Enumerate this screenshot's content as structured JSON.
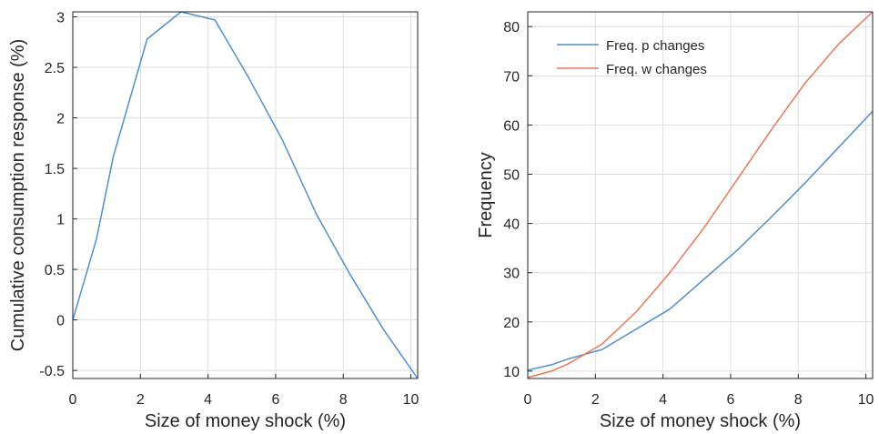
{
  "chart_data": [
    {
      "type": "line",
      "xlabel": "Size of money shock (%)",
      "ylabel": "Cumulative consumption response (%)",
      "xlim": [
        0,
        10.2
      ],
      "ylim": [
        -0.58,
        3.05
      ],
      "xticks": [
        0,
        2,
        4,
        6,
        8,
        10
      ],
      "xtick_labels": [
        "0",
        "2",
        "4",
        "6",
        "8",
        "10"
      ],
      "yticks": [
        -0.5,
        0,
        0.5,
        1,
        1.5,
        2,
        2.5,
        3
      ],
      "ytick_labels": [
        "-0.5",
        "0",
        "0.5",
        "1",
        "1.5",
        "2",
        "2.5",
        "3"
      ],
      "grid": true,
      "legend": null,
      "series": [
        {
          "color": "#4f8fcf",
          "x": [
            0,
            0.7,
            1.2,
            2.2,
            3.2,
            4.2,
            5.2,
            6.2,
            7.2,
            8.2,
            9.2,
            10.2
          ],
          "y": [
            0,
            0.8,
            1.62,
            2.78,
            3.05,
            2.97,
            2.4,
            1.78,
            1.05,
            0.45,
            -0.1,
            -0.58
          ]
        }
      ]
    },
    {
      "type": "line",
      "xlabel": "Size of money shock (%)",
      "ylabel": "Frequency",
      "xlim": [
        0,
        10.2
      ],
      "ylim": [
        8.5,
        83
      ],
      "xticks": [
        0,
        2,
        4,
        6,
        8,
        10
      ],
      "xtick_labels": [
        "0",
        "2",
        "4",
        "6",
        "8",
        "10"
      ],
      "yticks": [
        10,
        20,
        30,
        40,
        50,
        60,
        70,
        80
      ],
      "ytick_labels": [
        "10",
        "20",
        "30",
        "40",
        "50",
        "60",
        "70",
        "80"
      ],
      "grid": true,
      "legend": "top-left",
      "series": [
        {
          "name": "Freq. p changes",
          "color": "#4f8fcf",
          "x": [
            0,
            0.7,
            1.2,
            2.2,
            3.2,
            4.2,
            5.2,
            6.2,
            7.2,
            8.2,
            9.2,
            10.2
          ],
          "y": [
            10.2,
            11.3,
            12.5,
            14.4,
            18.5,
            22.6,
            28.6,
            34.6,
            41.3,
            48.2,
            55.5,
            62.8
          ]
        },
        {
          "name": "Freq. w changes",
          "color": "#e8795a",
          "x": [
            0,
            0.7,
            1.2,
            2.2,
            3.2,
            4.2,
            5.2,
            6.2,
            7.2,
            8.2,
            9.2,
            10.2
          ],
          "y": [
            8.7,
            10.0,
            11.5,
            15.5,
            22.0,
            30.0,
            39.0,
            49.0,
            59.0,
            68.5,
            76.5,
            83.0
          ]
        }
      ]
    }
  ]
}
